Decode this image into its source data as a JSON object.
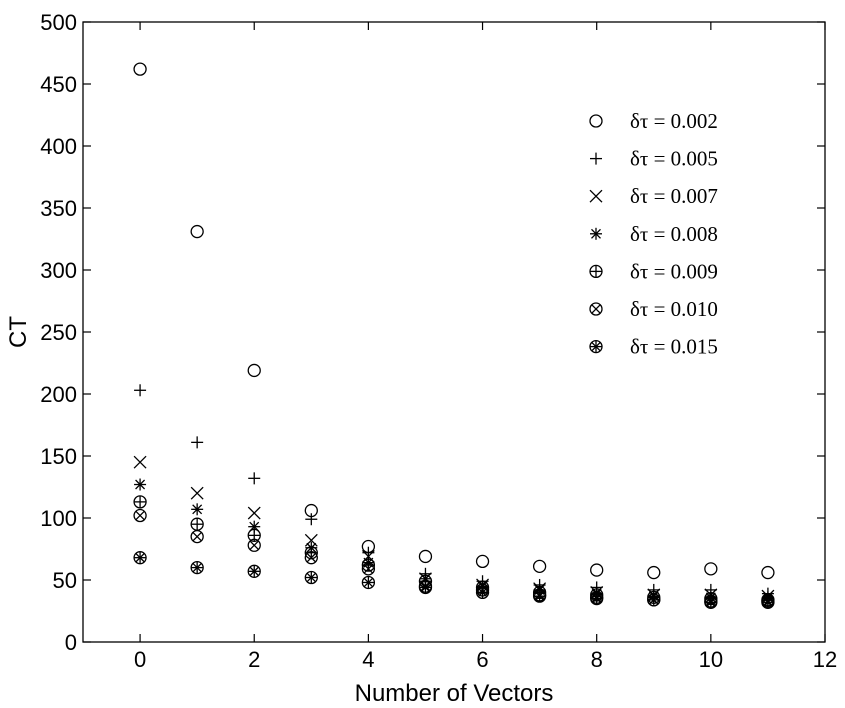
{
  "chart_data": {
    "type": "scatter",
    "title": "",
    "xlabel": "Number of Vectors",
    "ylabel": "CT",
    "xlim": [
      -1,
      12
    ],
    "ylim": [
      0,
      500
    ],
    "xticks": [
      0,
      2,
      4,
      6,
      8,
      10,
      12
    ],
    "yticks": [
      0,
      50,
      100,
      150,
      200,
      250,
      300,
      350,
      400,
      450,
      500
    ],
    "grid": false,
    "legend_position": "top-right",
    "x": [
      0,
      1,
      2,
      3,
      4,
      5,
      6,
      7,
      8,
      9,
      10,
      11
    ],
    "series": [
      {
        "name": "δτ = 0.002",
        "marker": "circle",
        "values": [
          462,
          331,
          219,
          106,
          77,
          69,
          65,
          61,
          58,
          56,
          59,
          56
        ]
      },
      {
        "name": "δτ = 0.005",
        "marker": "plus",
        "values": [
          203,
          161,
          132,
          99,
          72,
          55,
          49,
          46,
          44,
          42,
          42,
          39
        ]
      },
      {
        "name": "δτ = 0.007",
        "marker": "x",
        "values": [
          145,
          120,
          104,
          82,
          69,
          51,
          46,
          43,
          40,
          38,
          38,
          37
        ]
      },
      {
        "name": "δτ = 0.008",
        "marker": "asterisk",
        "values": [
          127,
          107,
          93,
          76,
          64,
          51,
          45,
          42,
          39,
          37,
          36,
          36
        ]
      },
      {
        "name": "δτ = 0.009",
        "marker": "circle-plus",
        "values": [
          113,
          95,
          86,
          72,
          62,
          49,
          44,
          40,
          38,
          36,
          35,
          34
        ]
      },
      {
        "name": "δτ = 0.010",
        "marker": "circle-x",
        "values": [
          102,
          85,
          78,
          68,
          59,
          45,
          42,
          38,
          36,
          34,
          33,
          33
        ]
      },
      {
        "name": "δτ = 0.015",
        "marker": "circle-asterisk",
        "values": [
          68,
          60,
          57,
          52,
          48,
          44,
          40,
          37,
          35,
          34,
          32,
          32
        ]
      }
    ]
  }
}
